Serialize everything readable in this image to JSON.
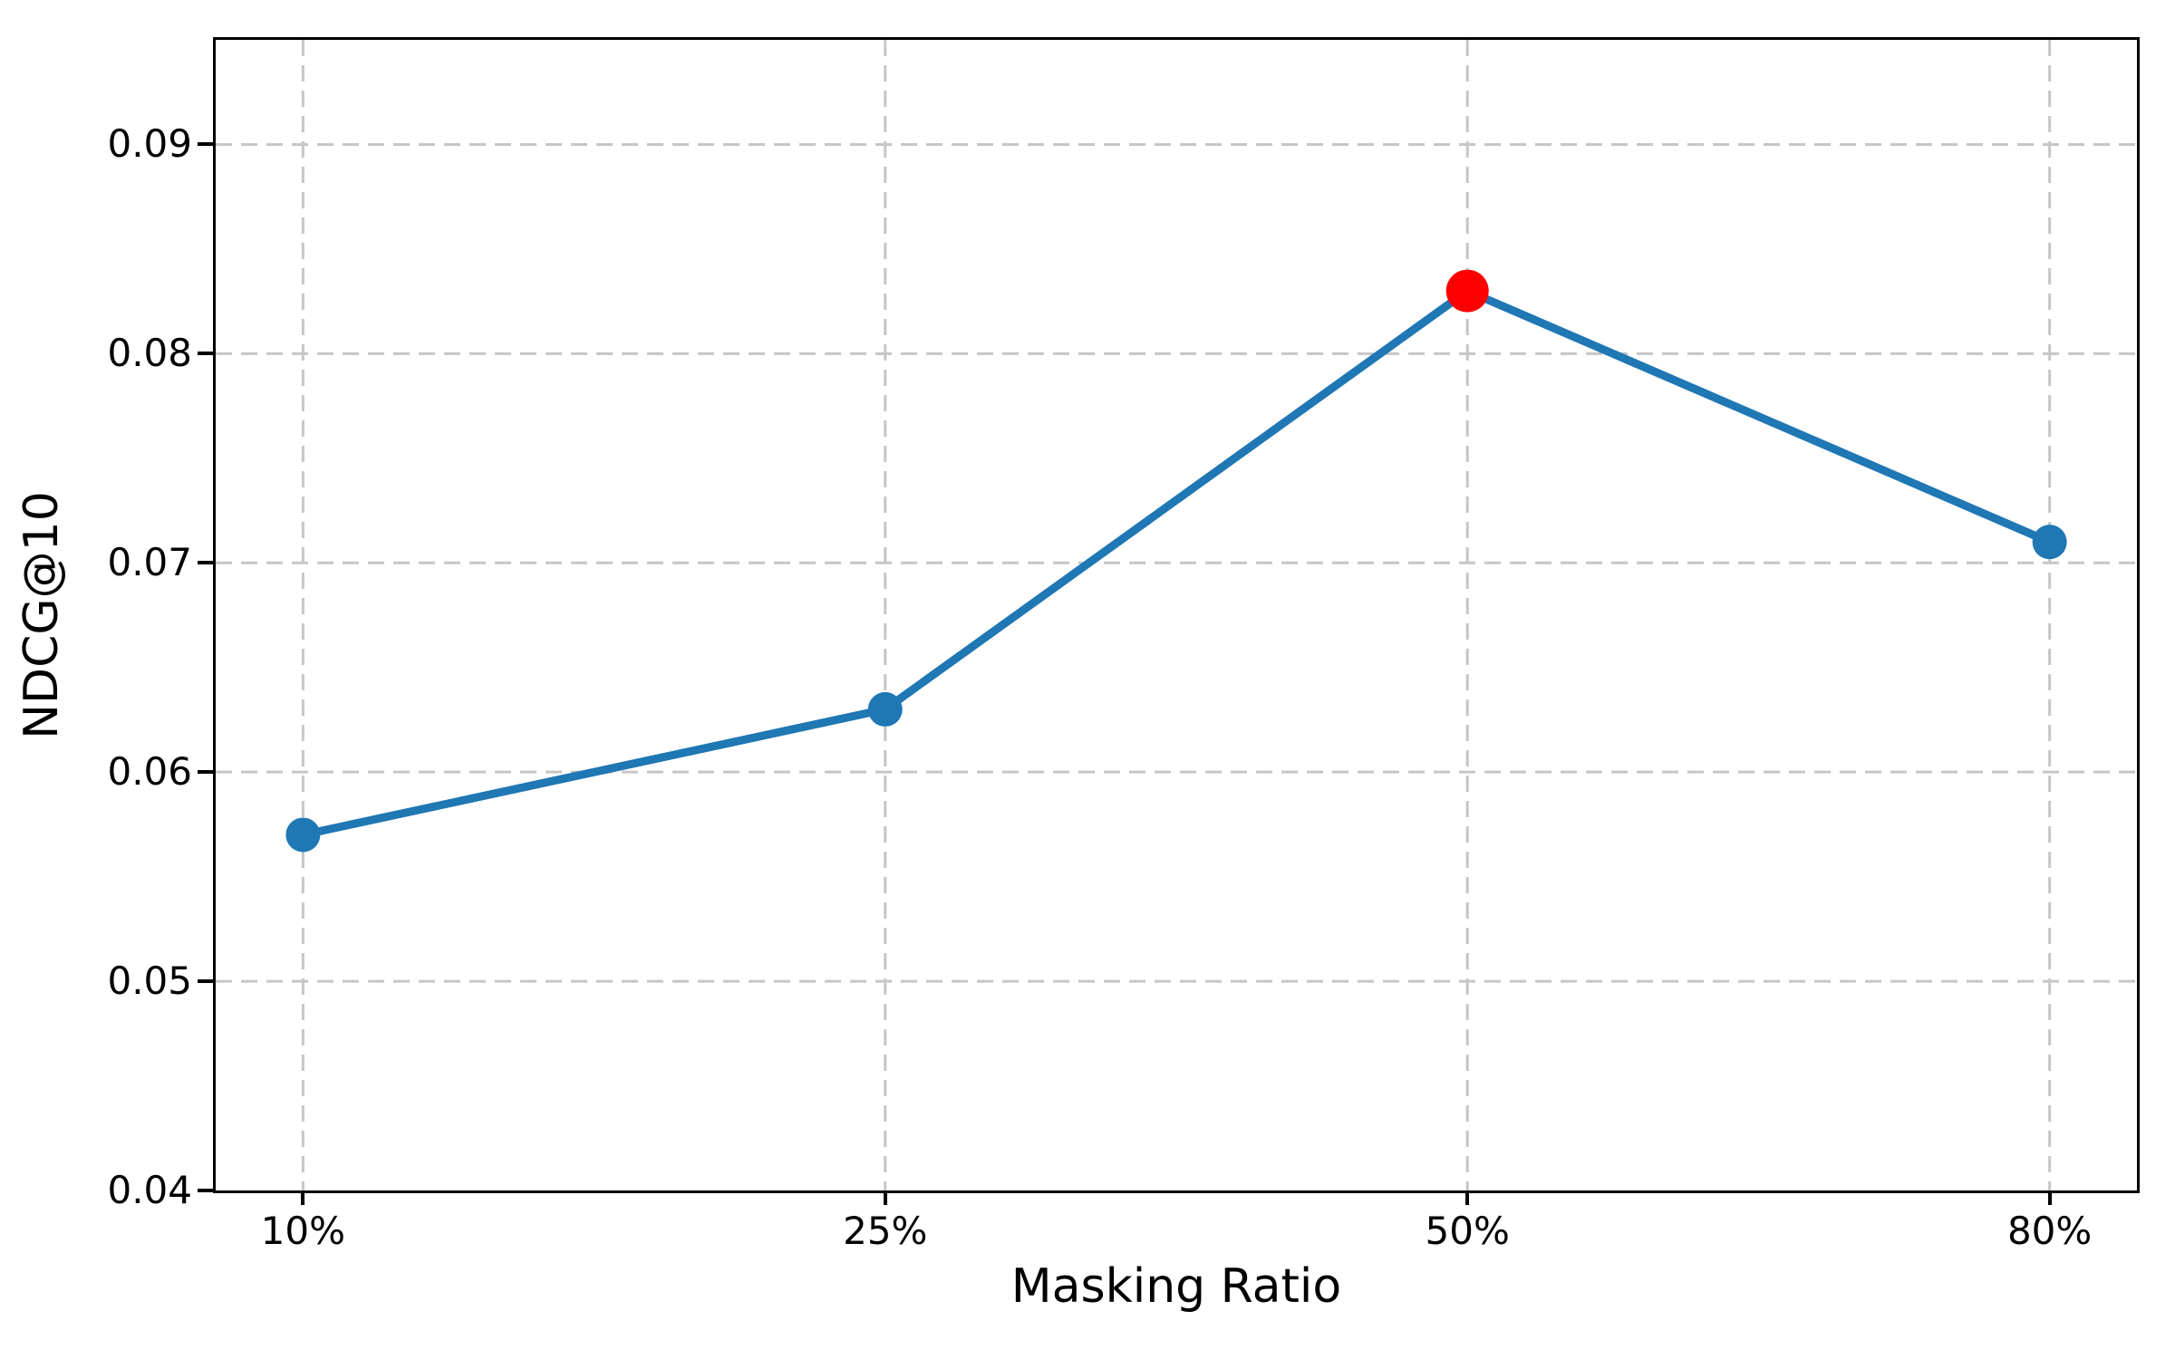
{
  "chart_data": {
    "type": "line",
    "xlabel": "Masking Ratio",
    "ylabel": "NDCG@10",
    "categories": [
      "10%",
      "25%",
      "50%",
      "80%"
    ],
    "series": [
      {
        "name": "NDCG@10",
        "values": [
          0.057,
          0.063,
          0.083,
          0.071
        ]
      }
    ],
    "highlight_index": 2,
    "y_ticks": [
      0.04,
      0.05,
      0.06,
      0.07,
      0.08,
      0.09
    ],
    "y_tick_labels": [
      "0.04",
      "0.05",
      "0.06",
      "0.07",
      "0.08",
      "0.09"
    ],
    "ylim": [
      0.04,
      0.095
    ],
    "x_margin_units": 0.15,
    "grid": true,
    "legend": "none",
    "colors": {
      "line": "#1f77b4",
      "marker": "#1f77b4",
      "highlight_marker": "#ff0000",
      "grid": "#c6c6c6",
      "axis": "#000000",
      "text": "#000000",
      "background": "#ffffff"
    }
  }
}
